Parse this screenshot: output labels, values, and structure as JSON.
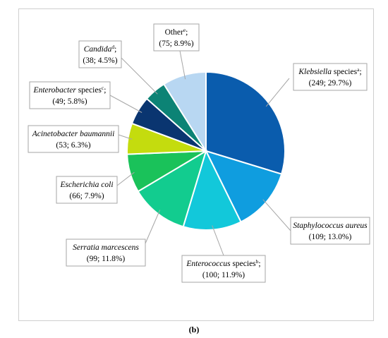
{
  "caption": "(b)",
  "chart_data": {
    "type": "pie",
    "title": "",
    "start_angle_deg": 0,
    "direction": "clockwise",
    "slices": [
      {
        "name": "Klebsiella",
        "name_style": "italic",
        "suffix": " species",
        "sup": "a",
        "trail": ";",
        "value": 249,
        "percent": "29.7%",
        "value_text": "(249; 29.7%)",
        "color": "#0a5cad"
      },
      {
        "name": "Staphylococcus aureus",
        "name_style": "italic",
        "suffix": "",
        "sup": "",
        "trail": "",
        "value": 109,
        "percent": "13.0%",
        "value_text": "(109; 13.0%)",
        "color": "#0f9ddf"
      },
      {
        "name": "Enterococcus",
        "name_style": "italic",
        "suffix": " species",
        "sup": "b",
        "trail": ";",
        "value": 100,
        "percent": "11.9%",
        "value_text": "(100; 11.9%)",
        "color": "#12c8da"
      },
      {
        "name": "Serratia marcescens",
        "name_style": "italic",
        "suffix": "",
        "sup": "",
        "trail": "",
        "value": 99,
        "percent": "11.8%",
        "value_text": "(99; 11.8%)",
        "color": "#12cc8f"
      },
      {
        "name": "Escherichia coli",
        "name_style": "italic",
        "suffix": "",
        "sup": "",
        "trail": "",
        "value": 66,
        "percent": "7.9%",
        "value_text": "(66; 7.9%)",
        "color": "#1ac25a"
      },
      {
        "name": "Acinetobacter baumannii",
        "name_style": "italic",
        "suffix": "",
        "sup": "",
        "trail": "",
        "value": 53,
        "percent": "6.3%",
        "value_text": "(53; 6.3%)",
        "color": "#c4dc0e"
      },
      {
        "name": "Enterobacter",
        "name_style": "italic",
        "suffix": " species",
        "sup": "c",
        "trail": ";",
        "value": 49,
        "percent": "5.8%",
        "value_text": "(49; 5.8%)",
        "color": "#0a3570"
      },
      {
        "name": "Candida",
        "name_style": "italic",
        "suffix": "",
        "sup": "d",
        "trail": ";",
        "value": 38,
        "percent": "4.5%",
        "value_text": "(38; 4.5%)",
        "color": "#0c8375"
      },
      {
        "name": "Other",
        "name_style": "normal",
        "suffix": "",
        "sup": "e",
        "trail": ";",
        "value": 75,
        "percent": "8.9%",
        "value_text": "(75; 8.9%)",
        "color": "#b8d7f2"
      }
    ]
  }
}
